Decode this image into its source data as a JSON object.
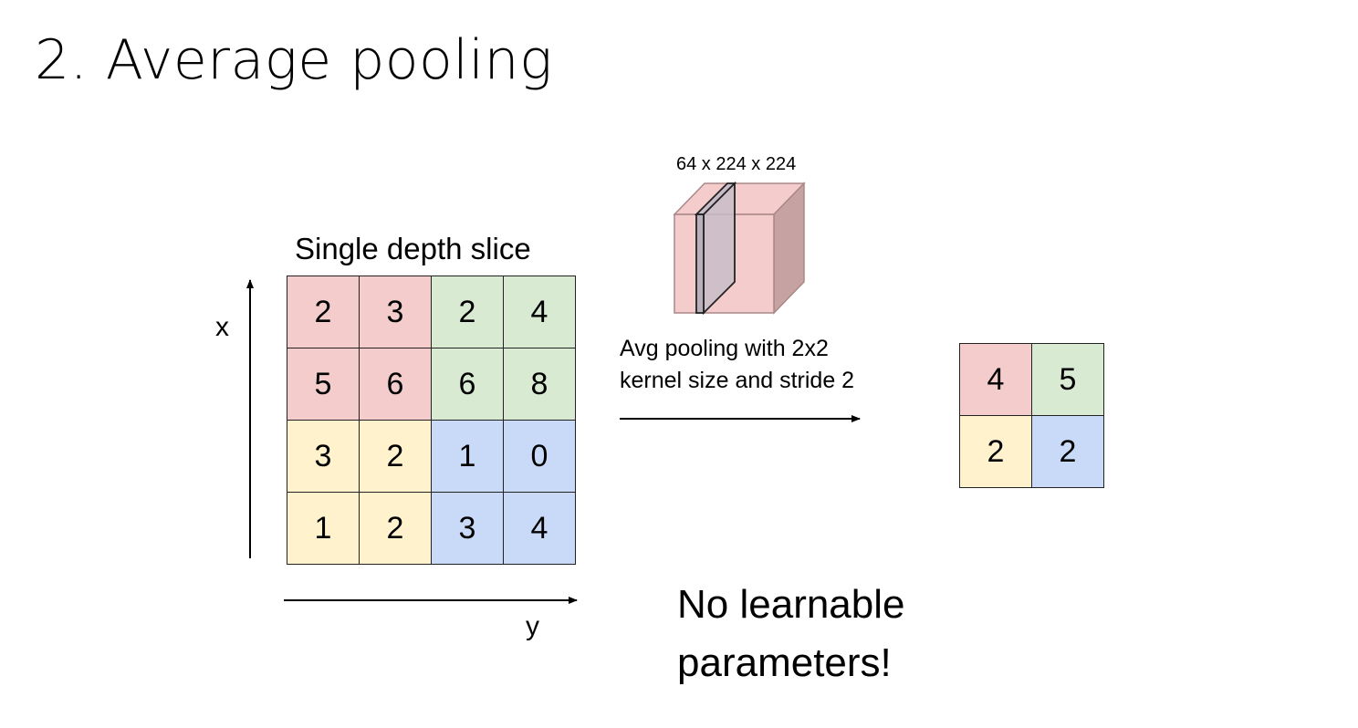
{
  "title": "2. Average pooling",
  "colors": {
    "red": "#f4cccc",
    "green": "#d9ead3",
    "yellow": "#fff2cc",
    "blue": "#c9daf8"
  },
  "input_matrix": {
    "title": "Single depth slice",
    "x_label": "x",
    "y_label": "y",
    "values": [
      [
        "2",
        "3",
        "2",
        "4"
      ],
      [
        "5",
        "6",
        "6",
        "8"
      ],
      [
        "3",
        "2",
        "1",
        "0"
      ],
      [
        "1",
        "2",
        "3",
        "4"
      ]
    ],
    "cell_colors": [
      [
        "red",
        "red",
        "green",
        "green"
      ],
      [
        "red",
        "red",
        "green",
        "green"
      ],
      [
        "yellow",
        "yellow",
        "blue",
        "blue"
      ],
      [
        "yellow",
        "yellow",
        "blue",
        "blue"
      ]
    ]
  },
  "volume": {
    "label": "64 x 224 x 224"
  },
  "operation": {
    "line1": "Avg pooling with 2x2",
    "line2": "kernel size and stride 2"
  },
  "output_matrix": {
    "values": [
      [
        "4",
        "5"
      ],
      [
        "2",
        "2"
      ]
    ],
    "cell_colors": [
      [
        "red",
        "green"
      ],
      [
        "yellow",
        "blue"
      ]
    ]
  },
  "note": {
    "line1": "No learnable",
    "line2": "parameters!"
  }
}
